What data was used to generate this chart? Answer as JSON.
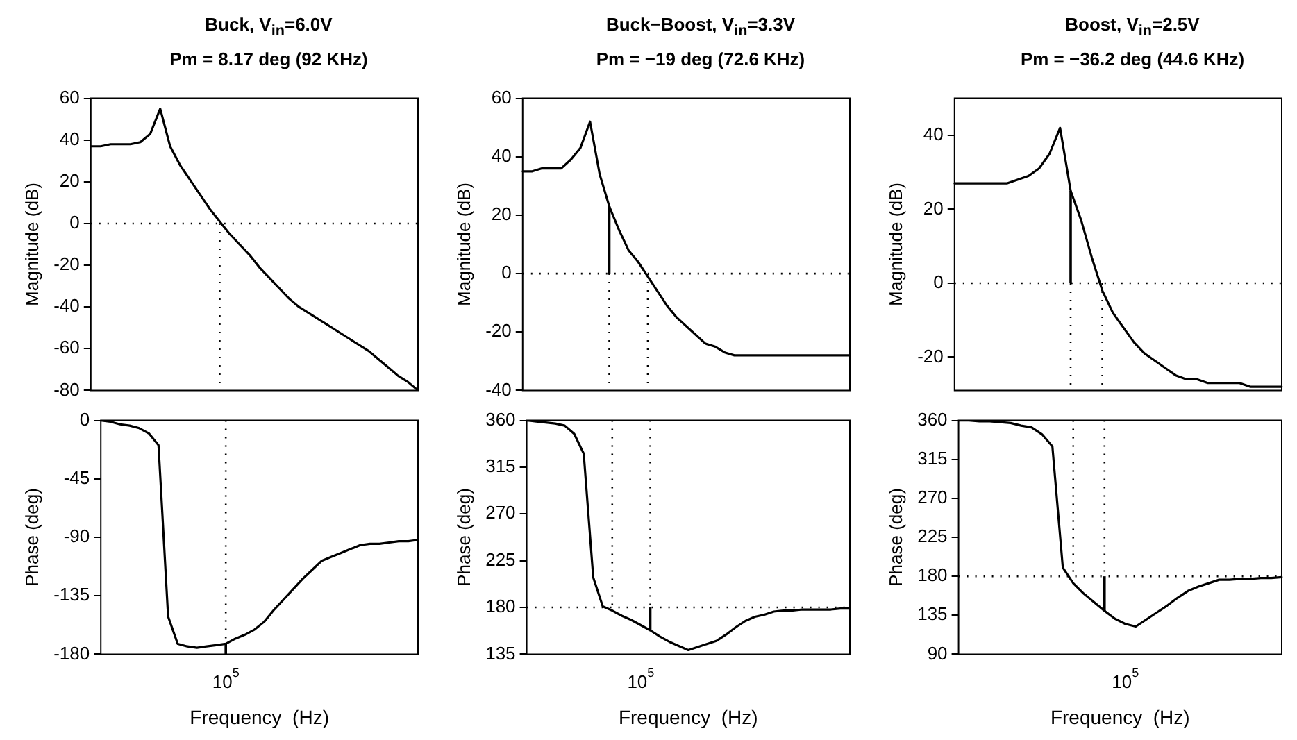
{
  "chart_data": [
    {
      "type": "line",
      "title": "Buck, V$_{in}$=6.0V",
      "subtitle": "Pm = 8.17 deg (92 KHz)",
      "ylabel": "Magnitude (dB)",
      "ylim": [
        -80,
        60
      ],
      "yticks": [
        -80,
        -60,
        -40,
        -20,
        0,
        20,
        40,
        60
      ],
      "categories": [
        null,
        null,
        null,
        null,
        null,
        null,
        null,
        null,
        null,
        null,
        null,
        null,
        null,
        null,
        null,
        null,
        null,
        null,
        null,
        null,
        null,
        null,
        null,
        null,
        null,
        null,
        null,
        null,
        null,
        null,
        null,
        null,
        null,
        null
      ],
      "series": [
        {
          "color": "#000000",
          "values": [
            37,
            37,
            38,
            38,
            38,
            39,
            43,
            55,
            37,
            28,
            21,
            14,
            7,
            1,
            -5,
            -10,
            -15,
            -21,
            -26,
            -31,
            -36,
            -40,
            -43,
            -46,
            -49,
            -52,
            -55,
            -58,
            -61,
            -65,
            -69,
            -73,
            -76,
            -80
          ]
        }
      ],
      "ref_lines": [
        {
          "axis": "y",
          "value": 0,
          "color": "#000000",
          "line_style": "dotted"
        }
      ]
    },
    {
      "type": "line",
      "title": "Buck−Boost, V$_{in}$=3.3V",
      "subtitle": "Pm = −19 deg (72.6 KHz)",
      "ylabel": "Magnitude (dB)",
      "ylim": [
        -40,
        60
      ],
      "yticks": [
        -40,
        -20,
        0,
        20,
        40,
        60
      ],
      "categories": [
        null,
        null,
        null,
        null,
        null,
        null,
        null,
        null,
        null,
        null,
        null,
        null,
        null,
        null,
        null,
        null,
        null,
        null,
        null,
        null,
        null,
        null,
        null,
        null,
        null,
        null,
        null,
        null,
        null,
        null,
        null,
        null,
        null,
        null,
        null
      ],
      "series": [
        {
          "color": "#000000",
          "values": [
            35,
            35,
            36,
            36,
            36,
            39,
            43,
            52,
            34,
            23,
            15,
            8,
            4,
            -1,
            -6,
            -11,
            -15,
            -18,
            -21,
            -24,
            -25,
            -27,
            -28,
            -28,
            -28,
            -28,
            -28,
            -28,
            -28,
            -28,
            -28,
            -28,
            -28,
            -28,
            -28
          ]
        }
      ],
      "ref_lines": [
        {
          "axis": "y",
          "value": 0,
          "color": "#000000",
          "line_style": "dotted"
        }
      ]
    },
    {
      "type": "line",
      "title": "Boost, V$_{in}$=2.5V",
      "subtitle": "Pm = −36.2 deg (44.6 KHz)",
      "ylabel": "Magnitude (dB)",
      "ylim": [
        -29,
        50
      ],
      "yticks": [
        -20,
        0,
        20,
        40
      ],
      "categories": [
        null,
        null,
        null,
        null,
        null,
        null,
        null,
        null,
        null,
        null,
        null,
        null,
        null,
        null,
        null,
        null,
        null,
        null,
        null,
        null,
        null,
        null,
        null,
        null,
        null,
        null,
        null,
        null,
        null,
        null,
        null,
        null
      ],
      "series": [
        {
          "color": "#000000",
          "values": [
            27,
            27,
            27,
            27,
            27,
            27,
            28,
            29,
            31,
            35,
            42,
            25,
            17,
            7,
            -2,
            -8,
            -12,
            -16,
            -19,
            -21,
            -23,
            -25,
            -26,
            -26,
            -27,
            -27,
            -27,
            -27,
            -28,
            -28,
            -28,
            -28
          ]
        }
      ],
      "ref_lines": [
        {
          "axis": "y",
          "value": 0,
          "color": "#000000",
          "line_style": "dotted"
        }
      ]
    },
    {
      "type": "line",
      "xlabel": "Frequency  (Hz)",
      "ylabel": "Phase (deg)",
      "ylim": [
        -180,
        0
      ],
      "yticks": [
        -180,
        -135,
        -90,
        -45,
        0
      ],
      "annotations": [
        "10$^{5}$"
      ],
      "categories": [
        null,
        null,
        null,
        null,
        null,
        null,
        null,
        null,
        null,
        null,
        null,
        null,
        null,
        null,
        null,
        null,
        null,
        null,
        null,
        null,
        null,
        null,
        null,
        null,
        null,
        null,
        null,
        null,
        null,
        null,
        null,
        null,
        null,
        null
      ],
      "series": [
        {
          "color": "#000000",
          "values": [
            0,
            -1,
            -3,
            -4,
            -6,
            -10,
            -19,
            -151,
            -172,
            -174,
            -175,
            -174,
            -173,
            -172,
            -168,
            -165,
            -161,
            -155,
            -146,
            -138,
            -130,
            -122,
            -115,
            -108,
            -105,
            -102,
            -99,
            -96,
            -95,
            -95,
            -94,
            -93,
            -93,
            -92
          ]
        }
      ]
    },
    {
      "type": "line",
      "xlabel": "Frequency  (Hz)",
      "ylabel": "Phase (deg)",
      "ylim": [
        135,
        360
      ],
      "yticks": [
        135,
        180,
        225,
        270,
        315,
        360
      ],
      "annotations": [
        "10$^{5}$"
      ],
      "categories": [
        null,
        null,
        null,
        null,
        null,
        null,
        null,
        null,
        null,
        null,
        null,
        null,
        null,
        null,
        null,
        null,
        null,
        null,
        null,
        null,
        null,
        null,
        null,
        null,
        null,
        null,
        null,
        null,
        null,
        null,
        null,
        null,
        null,
        null,
        null
      ],
      "series": [
        {
          "color": "#000000",
          "values": [
            360,
            359,
            358,
            357,
            355,
            347,
            328,
            209,
            181,
            177,
            172,
            168,
            163,
            158,
            152,
            147,
            143,
            139,
            142,
            145,
            148,
            154,
            161,
            167,
            171,
            173,
            176,
            177,
            177,
            178,
            178,
            178,
            178,
            179,
            179
          ]
        }
      ],
      "ref_lines": [
        {
          "axis": "y",
          "value": 180,
          "color": "#000000",
          "line_style": "dotted"
        }
      ]
    },
    {
      "type": "line",
      "xlabel": "Frequency  (Hz)",
      "ylabel": "Phase (deg)",
      "ylim": [
        90,
        360
      ],
      "yticks": [
        90,
        135,
        180,
        225,
        270,
        315,
        360
      ],
      "annotations": [
        "10$^{5}$"
      ],
      "categories": [
        null,
        null,
        null,
        null,
        null,
        null,
        null,
        null,
        null,
        null,
        null,
        null,
        null,
        null,
        null,
        null,
        null,
        null,
        null,
        null,
        null,
        null,
        null,
        null,
        null,
        null,
        null,
        null,
        null,
        null,
        null,
        null
      ],
      "series": [
        {
          "color": "#000000",
          "values": [
            360,
            360,
            359,
            359,
            358,
            357,
            354,
            352,
            344,
            330,
            190,
            172,
            160,
            150,
            140,
            131,
            125,
            122,
            130,
            138,
            146,
            155,
            163,
            168,
            172,
            176,
            176,
            177,
            177,
            178,
            178,
            179
          ]
        }
      ],
      "ref_lines": [
        {
          "axis": "y",
          "value": 180,
          "color": "#000000",
          "line_style": "dotted"
        }
      ]
    }
  ]
}
